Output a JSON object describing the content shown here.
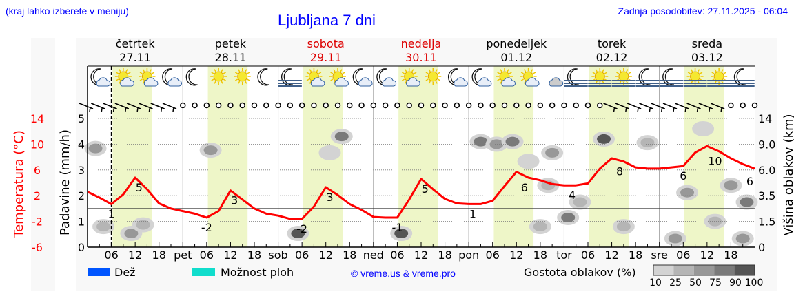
{
  "header": {
    "menu_hint": "(kraj lahko izberete v meniju)",
    "title": "Ljubljana 7 dni",
    "updated": "Zadnja posodobitev: 27.11.2025 - 06:04"
  },
  "colors": {
    "link_blue": "#0000ff",
    "temperature": "#ff0000",
    "weekend": "#dd0000",
    "daylight": "#eef6c8",
    "rain": "#0055ff",
    "showers": "#11ddcc"
  },
  "chart_data": {
    "type": "line",
    "title": "Ljubljana 7 dni",
    "days": [
      {
        "name": "četrtek",
        "date": "27.11",
        "weekend": false
      },
      {
        "name": "petek",
        "date": "28.11",
        "weekend": false
      },
      {
        "name": "sobota",
        "date": "29.11",
        "weekend": true
      },
      {
        "name": "nedelja",
        "date": "30.11",
        "weekend": true
      },
      {
        "name": "ponedeljek",
        "date": "01.12",
        "weekend": false
      },
      {
        "name": "torek",
        "date": "02.12",
        "weekend": false
      },
      {
        "name": "sreda",
        "date": "03.12",
        "weekend": false
      }
    ],
    "x_tick_labels": [
      "06",
      "12",
      "18",
      "pet",
      "06",
      "12",
      "18",
      "sob",
      "06",
      "12",
      "18",
      "ned",
      "06",
      "12",
      "18",
      "pon",
      "06",
      "12",
      "18",
      "tor",
      "06",
      "12",
      "18",
      "sre",
      "06",
      "12",
      "18"
    ],
    "now_hour": 6,
    "left_axis_temperature": {
      "label": "Temperatura (°C)",
      "ticks": [
        "14",
        "10",
        "6",
        "2",
        "-2",
        "-6"
      ],
      "range": [
        -6,
        14
      ]
    },
    "left_axis_precip": {
      "label": "Padavine (mm/h)",
      "ticks": [
        "0",
        "1",
        "2",
        "3",
        "4",
        "5"
      ],
      "range": [
        0,
        5
      ]
    },
    "right_axis_cloud": {
      "label": "Višina oblakov (km)",
      "ticks": [
        "0",
        "1.5",
        "3.5",
        "6.0",
        "9.0",
        "14"
      ]
    },
    "daylight_hours": [
      6.3,
      16.3
    ],
    "temperature_series": {
      "step_hours": 3,
      "values": [
        2.6,
        1.7,
        0.7,
        2.2,
        4.8,
        3.0,
        0.8,
        0.0,
        -0.4,
        -0.8,
        -1.4,
        -0.4,
        2.8,
        1.4,
        0.0,
        -0.8,
        -1.1,
        -1.6,
        -1.6,
        0.3,
        3.3,
        2.1,
        0.7,
        -0.2,
        -1.3,
        -1.4,
        -1.4,
        1.4,
        4.6,
        3.0,
        1.5,
        0.8,
        0.7,
        0.7,
        1.2,
        3.5,
        5.7,
        4.8,
        4.4,
        3.8,
        3.6,
        3.6,
        3.9,
        6.2,
        7.8,
        7.3,
        6.4,
        6.2,
        6.2,
        6.4,
        6.6,
        8.7,
        9.7,
        8.9,
        7.8,
        6.9,
        6.2
      ]
    },
    "temperature_labels": [
      {
        "hour": 6,
        "text": "1"
      },
      {
        "hour": 13,
        "text": "5"
      },
      {
        "hour": 30,
        "text": "-2"
      },
      {
        "hour": 37,
        "text": "3"
      },
      {
        "hour": 54,
        "text": "-2"
      },
      {
        "hour": 61,
        "text": "3"
      },
      {
        "hour": 78,
        "text": "-1"
      },
      {
        "hour": 85,
        "text": "5"
      },
      {
        "hour": 97,
        "text": "1"
      },
      {
        "hour": 110,
        "text": "6"
      },
      {
        "hour": 122,
        "text": "4"
      },
      {
        "hour": 134,
        "text": "8"
      },
      {
        "hour": 150,
        "text": "6"
      },
      {
        "hour": 158,
        "text": "10"
      },
      {
        "hour": 168,
        "text": "6"
      }
    ],
    "zero_line_temperature": 0,
    "weather_icons": [
      "moon-cloud",
      "sun-cloud",
      "sun-cloud",
      "moon-cloud",
      "moon",
      "sun",
      "sun",
      "moon",
      "moon-fog",
      "sun-cloud",
      "sun-cloud",
      "moon-cloud",
      "moon-cloud",
      "sun-cloud",
      "sun",
      "moon-cloud",
      "moon-cloud",
      "sun-cloud",
      "sun-cloud",
      "cloud",
      "moon-fog",
      "sun-fog",
      "sun-fog",
      "moon-fog",
      "moon-fog",
      "sun-fog",
      "sun-fog",
      "moon-fog"
    ],
    "wind": [
      "barb",
      "barb",
      "barb",
      "barb",
      "barb",
      "barb",
      "barb",
      "barb",
      "calm",
      "calm",
      "calm",
      "calm",
      "calm",
      "calm",
      "calm",
      "calm",
      "calm",
      "calm",
      "calm",
      "calm",
      "calm",
      "calm",
      "calm",
      "calm",
      "calm",
      "calm",
      "calm",
      "calm",
      "calm",
      "calm",
      "calm",
      "calm",
      "calm",
      "calm",
      "calm",
      "calm",
      "calm",
      "calm",
      "calm",
      "calm",
      "calm",
      "calm",
      "calm",
      "calm",
      "barb",
      "barb",
      "barb",
      "barb",
      "barb",
      "barb",
      "barb",
      "barb",
      "barb",
      "barb",
      "calm",
      "calm",
      "calm"
    ],
    "clouds": [
      {
        "hour": 2,
        "km": 8.5,
        "density": 50
      },
      {
        "hour": 4,
        "km": 1.2,
        "density": 25
      },
      {
        "hour": 11,
        "km": 0.8,
        "density": 50
      },
      {
        "hour": 14,
        "km": 1.3,
        "density": 25
      },
      {
        "hour": 31,
        "km": 8.3,
        "density": 50
      },
      {
        "hour": 53,
        "km": 0.8,
        "density": 90
      },
      {
        "hour": 61,
        "km": 8.0,
        "density": 10
      },
      {
        "hour": 64,
        "km": 10.5,
        "density": 75
      },
      {
        "hour": 79,
        "km": 0.8,
        "density": 90
      },
      {
        "hour": 99,
        "km": 9.5,
        "density": 75
      },
      {
        "hour": 103,
        "km": 9.0,
        "density": 50
      },
      {
        "hour": 107,
        "km": 9.5,
        "density": 75
      },
      {
        "hour": 111,
        "km": 7.0,
        "density": 10
      },
      {
        "hour": 114,
        "km": 1.2,
        "density": 25
      },
      {
        "hour": 116,
        "km": 4.5,
        "density": 25
      },
      {
        "hour": 117,
        "km": 8.0,
        "density": 50
      },
      {
        "hour": 121,
        "km": 1.8,
        "density": 75
      },
      {
        "hour": 124,
        "km": 3.0,
        "density": 25
      },
      {
        "hour": 130,
        "km": 10.0,
        "density": 90
      },
      {
        "hour": 135,
        "km": 1.2,
        "density": 25
      },
      {
        "hour": 141,
        "km": 9.3,
        "density": 25
      },
      {
        "hour": 148,
        "km": 0.5,
        "density": 50
      },
      {
        "hour": 151,
        "km": 3.8,
        "density": 50
      },
      {
        "hour": 155,
        "km": 12.0,
        "density": 10
      },
      {
        "hour": 158,
        "km": 1.5,
        "density": 25
      },
      {
        "hour": 162,
        "km": 4.5,
        "density": 50
      },
      {
        "hour": 166,
        "km": 3.0,
        "density": 75
      },
      {
        "hour": 165,
        "km": 0.5,
        "density": 50
      }
    ]
  },
  "legend": {
    "rain_label": "Dež",
    "showers_label": "Možnost ploh",
    "copyright": "© vreme.us & vreme.pro",
    "cloud_density_label": "Gostota oblakov (%)",
    "density_scale": [
      "10",
      "25",
      "50",
      "75",
      "90",
      "100"
    ],
    "density_colors": [
      "#d3d3d3",
      "#b5b5b5",
      "#989898",
      "#7a7a7a",
      "#555555"
    ]
  }
}
